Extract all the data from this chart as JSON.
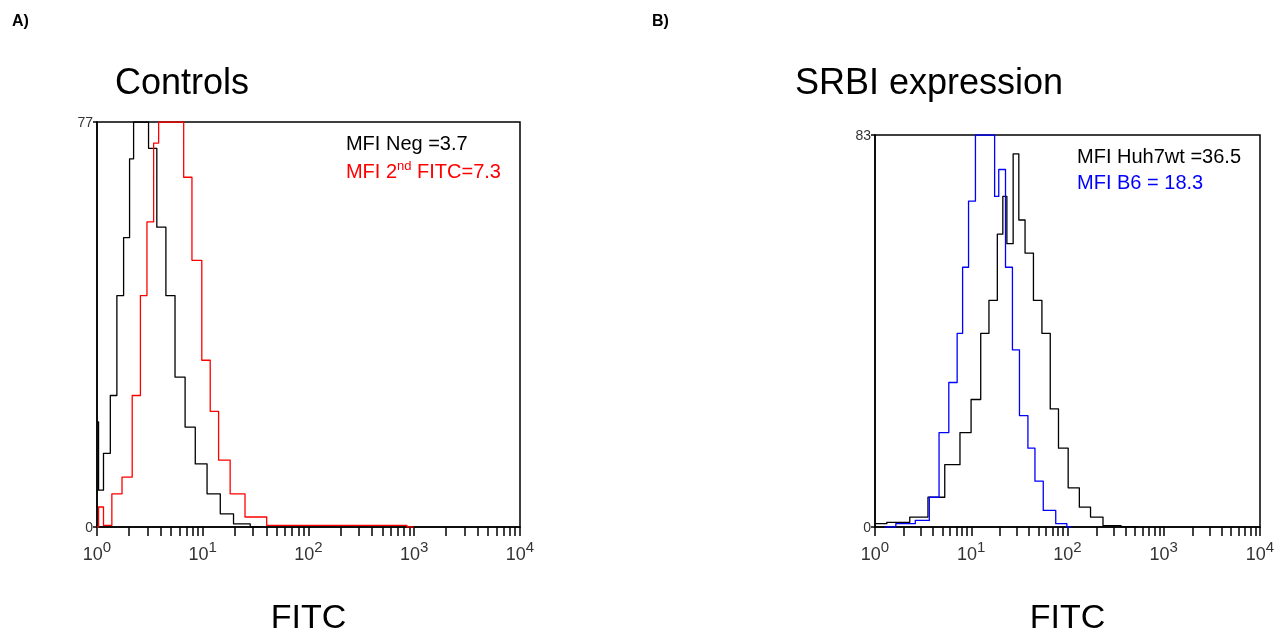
{
  "chart_data": [
    {
      "type": "step",
      "title": "Controls",
      "xlabel": "FITC",
      "annotations": [
        "A)"
      ],
      "log": "x",
      "legend": "top right",
      "xlim": [
        1,
        10000
      ],
      "ylim": [
        0,
        77
      ],
      "xticks": [
        {
          "value": 1,
          "label": "10$^{0}$"
        },
        {
          "value": 2,
          "label": null
        },
        {
          "value": 3,
          "label": null
        },
        {
          "value": 4,
          "label": null
        },
        {
          "value": 5,
          "label": null
        },
        {
          "value": 6,
          "label": null
        },
        {
          "value": 7,
          "label": null
        },
        {
          "value": 8,
          "label": null
        },
        {
          "value": 9,
          "label": null
        },
        {
          "value": 10,
          "label": "10$^{1}$"
        },
        {
          "value": 20,
          "label": null
        },
        {
          "value": 30,
          "label": null
        },
        {
          "value": 40,
          "label": null
        },
        {
          "value": 50,
          "label": null
        },
        {
          "value": 60,
          "label": null
        },
        {
          "value": 70,
          "label": null
        },
        {
          "value": 80,
          "label": null
        },
        {
          "value": 90,
          "label": null
        },
        {
          "value": 100,
          "label": "10$^{2}$"
        },
        {
          "value": 200,
          "label": null
        },
        {
          "value": 300,
          "label": null
        },
        {
          "value": 400,
          "label": null
        },
        {
          "value": 500,
          "label": null
        },
        {
          "value": 600,
          "label": null
        },
        {
          "value": 700,
          "label": null
        },
        {
          "value": 800,
          "label": null
        },
        {
          "value": 900,
          "label": null
        },
        {
          "value": 1000,
          "label": "10$^{3}$"
        },
        {
          "value": 2000,
          "label": null
        },
        {
          "value": 3000,
          "label": null
        },
        {
          "value": 4000,
          "label": null
        },
        {
          "value": 5000,
          "label": null
        },
        {
          "value": 6000,
          "label": null
        },
        {
          "value": 7000,
          "label": null
        },
        {
          "value": 8000,
          "label": null
        },
        {
          "value": 9000,
          "label": null
        },
        {
          "value": 10000,
          "label": "10$^{4}$"
        }
      ],
      "yticks": [
        0,
        77
      ],
      "grid": false,
      "series": [
        {
          "name": "MFI Neg =3.7",
          "color": "#000000",
          "x": [
            1,
            1.07,
            1.24,
            1.44,
            1.65,
            1.93,
            2.14,
            2.3,
            2.86,
            3.3,
            4.1,
            4.9,
            6.1,
            7.6,
            9.5,
            12.7,
            16.9,
            22.6,
            35
          ],
          "values": [
            20,
            7,
            14,
            25,
            44,
            55,
            70,
            77,
            77,
            72,
            57,
            44,
            28.5,
            19,
            12,
            6.3,
            2.5,
            0.6,
            0
          ]
        },
        {
          "name": "MFI 2$^{nd}$ FITC=7.3",
          "color": "#ff0000",
          "x": [
            1,
            1.07,
            1.24,
            1.54,
            1.93,
            2.4,
            2.76,
            3.19,
            3.69,
            3.97,
            6.14,
            7.1,
            8.8,
            10.9,
            12.7,
            15.7,
            21,
            30,
            54,
            111,
            735,
            990
          ],
          "values": [
            0,
            3.8,
            0.3,
            6.3,
            9.5,
            25,
            44,
            58,
            73,
            77,
            77,
            66.5,
            50.7,
            31.7,
            22,
            12.7,
            6.3,
            1.9,
            0.3,
            0.3,
            0.3,
            0
          ]
        }
      ]
    },
    {
      "type": "step",
      "title": "SRBI expression",
      "xlabel": "FITC",
      "annotations": [
        "B)"
      ],
      "log": "x",
      "legend": "top right",
      "xlim": [
        1,
        10000
      ],
      "ylim": [
        0,
        83
      ],
      "xticks": [
        {
          "value": 1,
          "label": "10$^{0}$"
        },
        {
          "value": 2,
          "label": null
        },
        {
          "value": 3,
          "label": null
        },
        {
          "value": 4,
          "label": null
        },
        {
          "value": 5,
          "label": null
        },
        {
          "value": 6,
          "label": null
        },
        {
          "value": 7,
          "label": null
        },
        {
          "value": 8,
          "label": null
        },
        {
          "value": 9,
          "label": null
        },
        {
          "value": 10,
          "label": "10$^{1}$"
        },
        {
          "value": 20,
          "label": null
        },
        {
          "value": 30,
          "label": null
        },
        {
          "value": 40,
          "label": null
        },
        {
          "value": 50,
          "label": null
        },
        {
          "value": 60,
          "label": null
        },
        {
          "value": 70,
          "label": null
        },
        {
          "value": 80,
          "label": null
        },
        {
          "value": 90,
          "label": null
        },
        {
          "value": 100,
          "label": "10$^{2}$"
        },
        {
          "value": 200,
          "label": null
        },
        {
          "value": 300,
          "label": null
        },
        {
          "value": 400,
          "label": null
        },
        {
          "value": 500,
          "label": null
        },
        {
          "value": 600,
          "label": null
        },
        {
          "value": 700,
          "label": null
        },
        {
          "value": 800,
          "label": null
        },
        {
          "value": 900,
          "label": null
        },
        {
          "value": 1000,
          "label": "10$^{3}$"
        },
        {
          "value": 2000,
          "label": null
        },
        {
          "value": 3000,
          "label": null
        },
        {
          "value": 4000,
          "label": null
        },
        {
          "value": 5000,
          "label": null
        },
        {
          "value": 6000,
          "label": null
        },
        {
          "value": 7000,
          "label": null
        },
        {
          "value": 8000,
          "label": null
        },
        {
          "value": 9000,
          "label": null
        },
        {
          "value": 10000,
          "label": "10$^{4}$"
        }
      ],
      "yticks": [
        0,
        83
      ],
      "grid": false,
      "series": [
        {
          "name": "MFI Huh7wt =36.5",
          "color": "#000000",
          "x": [
            1,
            1.76,
            3.0,
            4.2,
            6.7,
            8.7,
            11.4,
            13.8,
            16.9,
            20.6,
            22,
            25,
            29.7,
            32.8,
            40,
            49,
            60,
            73,
            89,
            116,
            152,
            198,
            276,
            470,
            535
          ],
          "values": [
            0.7,
            1,
            2.1,
            6.3,
            13.2,
            20,
            27,
            41,
            48,
            62,
            70,
            60,
            79,
            65,
            58,
            48,
            41,
            25,
            16.7,
            8.3,
            4.2,
            2.1,
            0.3,
            0.1,
            0
          ]
        },
        {
          "name": "MFI B6 = 18.3",
          "color": "#0000ff",
          "x": [
            1.26,
            2.15,
            3.2,
            4.2,
            5.1,
            6.7,
            7.6,
            8.7,
            10.1,
            12.1,
            16.9,
            18.1,
            20.6,
            25,
            28.7,
            35,
            43,
            49,
            64,
            89,
            109
          ],
          "values": [
            0,
            0.7,
            1.4,
            6.3,
            20,
            30.6,
            41,
            55,
            69,
            83,
            83,
            70,
            75.7,
            55,
            37.5,
            23.6,
            16.7,
            9.7,
            3.5,
            0.7,
            0
          ]
        }
      ]
    }
  ]
}
